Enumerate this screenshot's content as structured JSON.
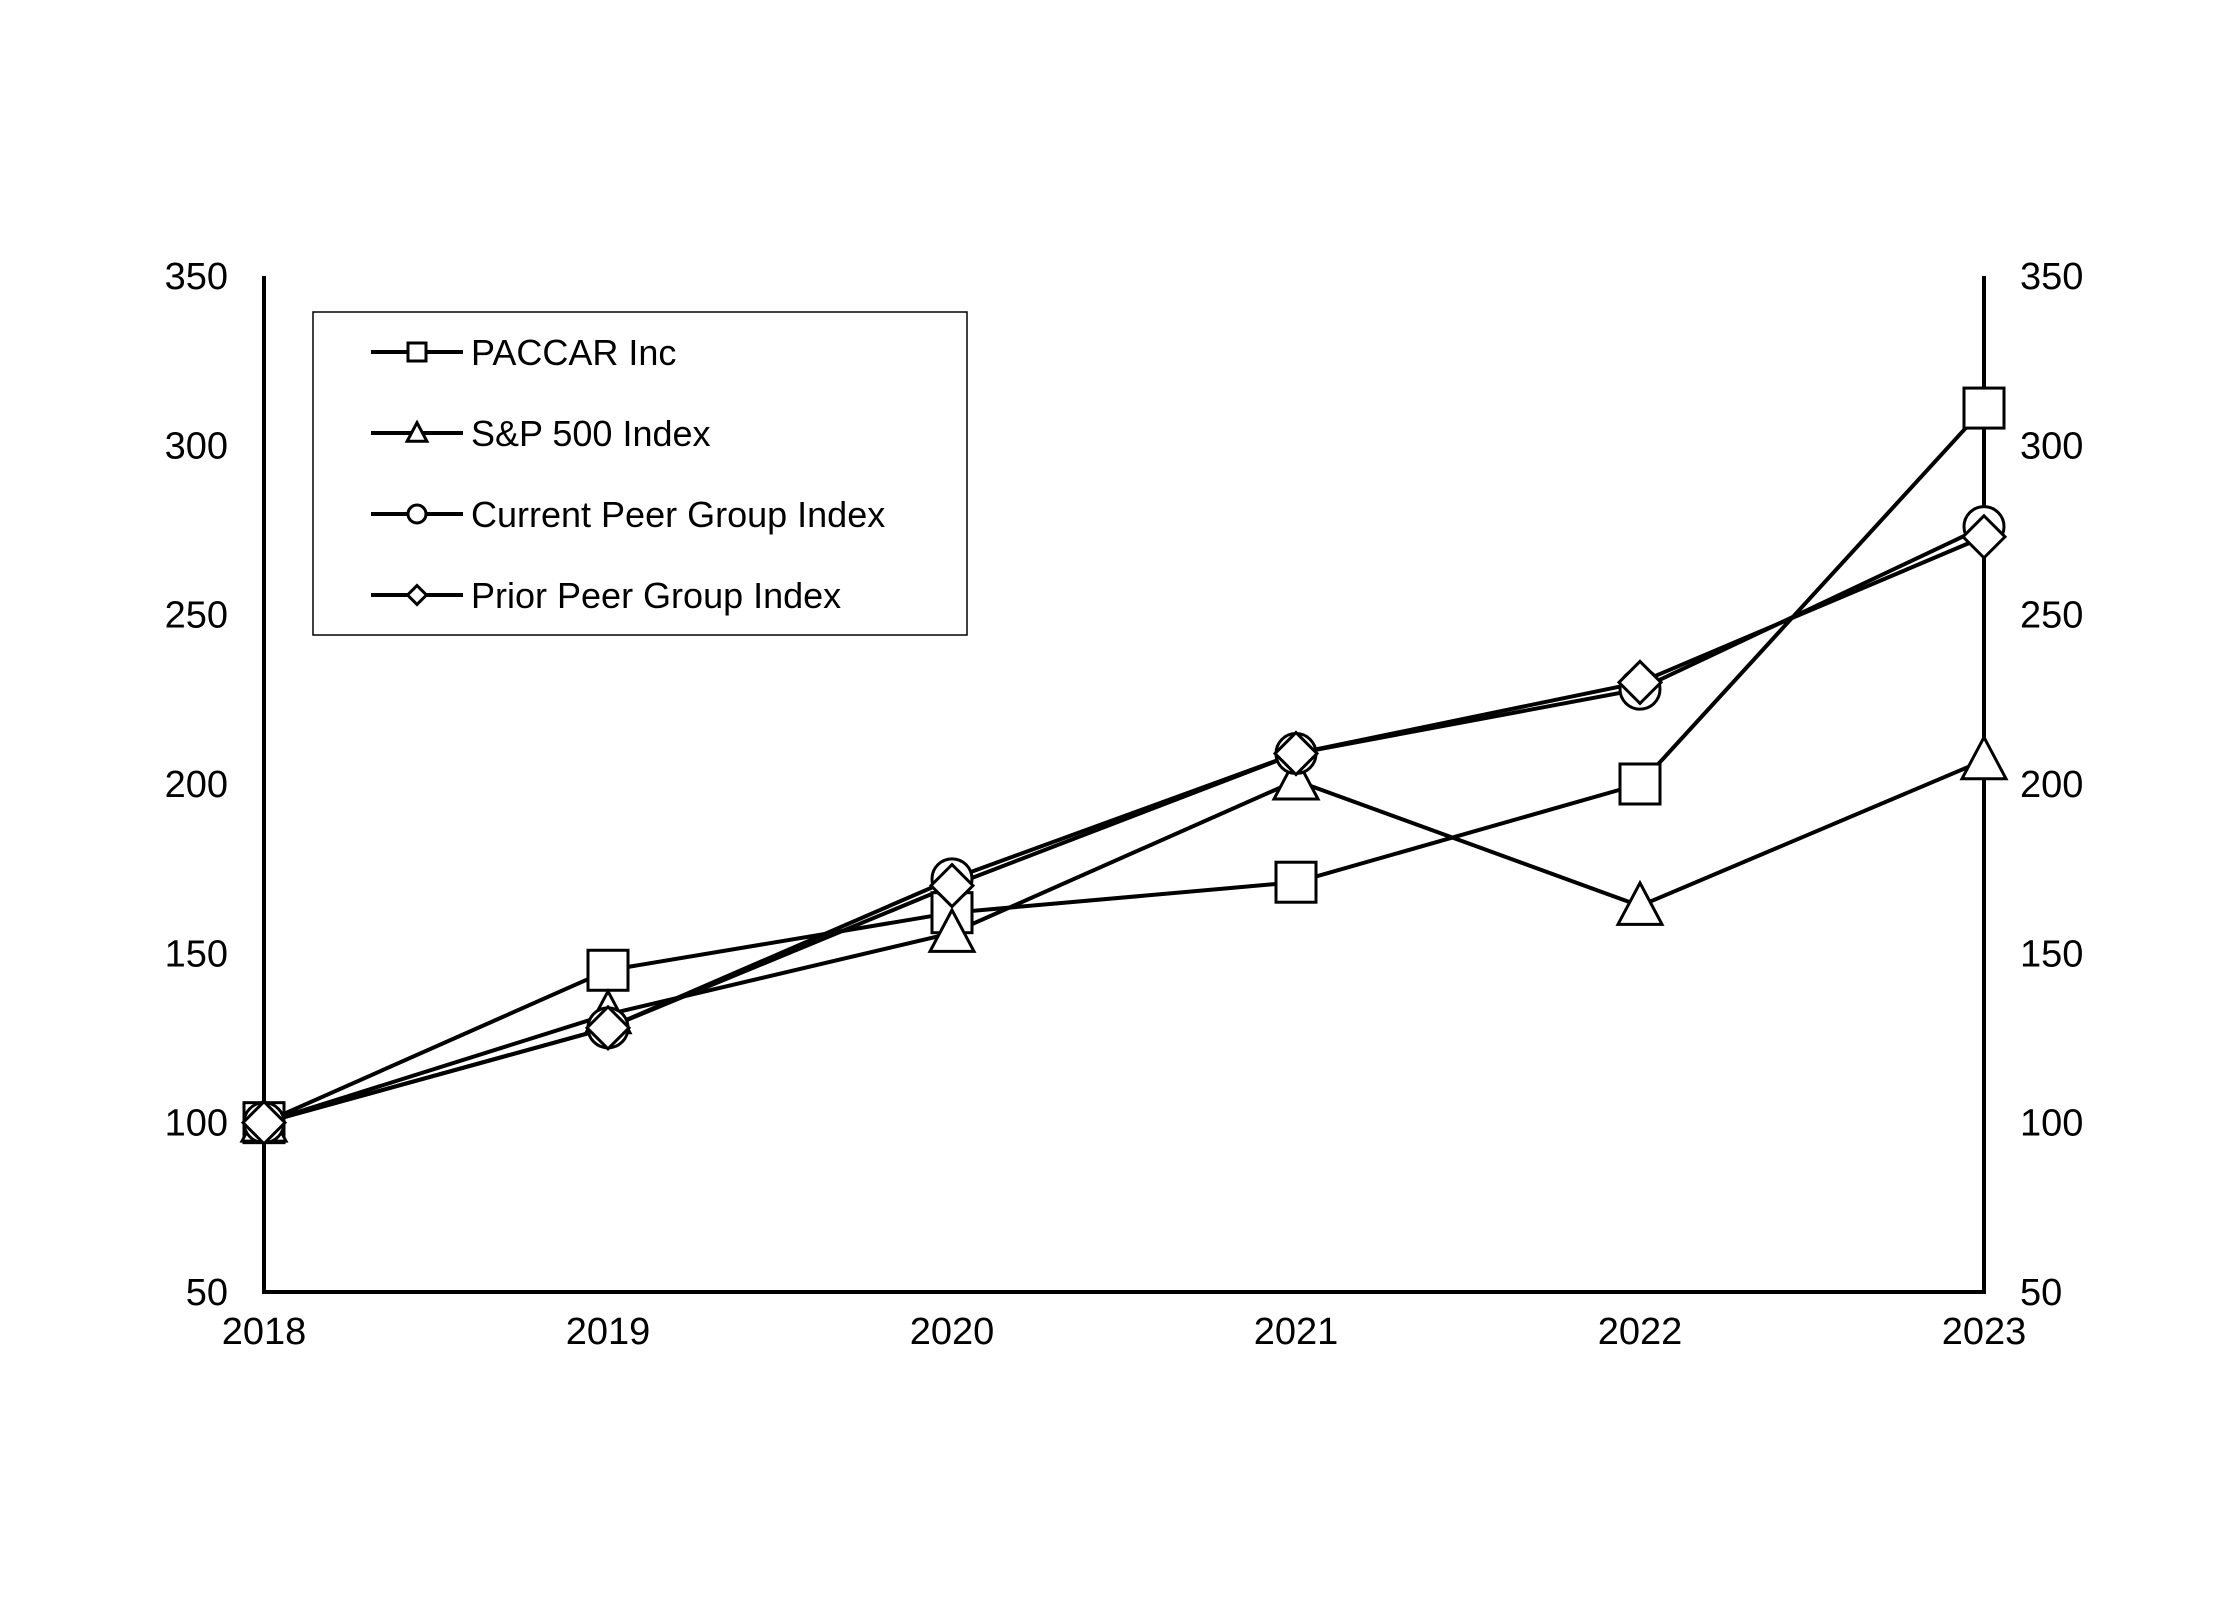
{
  "chart_data": {
    "type": "line",
    "categories": [
      "2018",
      "2019",
      "2020",
      "2021",
      "2022",
      "2023"
    ],
    "ylim": [
      50,
      350
    ],
    "yticks": [
      50,
      100,
      150,
      200,
      250,
      300,
      350
    ],
    "grid": false,
    "legend_position": "top-left",
    "series": [
      {
        "name": "PACCAR Inc",
        "marker": "square",
        "values": [
          100,
          145,
          162,
          171,
          200,
          311
        ]
      },
      {
        "name": "S&P 500 Index",
        "marker": "triangle",
        "values": [
          100,
          132,
          156,
          201,
          164,
          207
        ]
      },
      {
        "name": "Current Peer Group Index",
        "marker": "circle",
        "values": [
          100,
          128,
          172,
          209,
          228,
          276
        ]
      },
      {
        "name": "Prior Peer Group Index",
        "marker": "diamond",
        "values": [
          100,
          128,
          170,
          209,
          230,
          273
        ]
      }
    ],
    "colors": {
      "line": "#000000",
      "marker_fill": "#ffffff",
      "background": "#ffffff"
    }
  }
}
